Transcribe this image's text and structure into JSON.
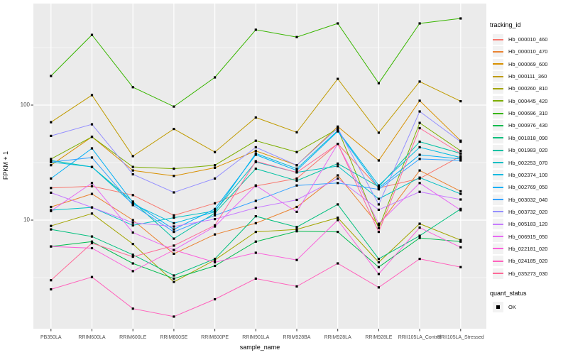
{
  "chart_data": {
    "type": "line",
    "title": "",
    "xlabel": "sample_name",
    "ylabel": "FPKM + 1",
    "y_scale": "log10",
    "ylim": [
      1.1,
      750
    ],
    "y_ticks": [
      {
        "label": "100",
        "value": 100
      },
      {
        "label": "10",
        "value": 10
      }
    ],
    "y_minor_gridlines": [
      3.162,
      31.62,
      316.2
    ],
    "grid": true,
    "panel_bg": "#ebebeb",
    "grid_color": "#ffffff",
    "point_shape": "filled-square",
    "point_color": "#000000",
    "legend_position": "right",
    "categories": [
      "PB350LA",
      "RRIM600LA",
      "RRIM600LE",
      "RRIM600SE",
      "RRIM600PE",
      "RRIM901LA",
      "RRIM928BA",
      "RRIM928LA",
      "RRIM928LE",
      "RRII105LA_Control",
      "RRII105LA_Stressed"
    ],
    "series": [
      {
        "name": "Hb_000010_460",
        "color": "#F8766D",
        "values": [
          19,
          19.7,
          16.5,
          11,
          14,
          19.8,
          23,
          46,
          19,
          23,
          36
        ]
      },
      {
        "name": "Hb_000010_470",
        "color": "#EA8331",
        "values": [
          13,
          16.9,
          10,
          5.1,
          7.5,
          9.4,
          13,
          24.5,
          9.0,
          27,
          17.8
        ]
      },
      {
        "name": "Hb_000069_600",
        "color": "#D89000",
        "values": [
          30,
          53,
          27,
          24.2,
          28.5,
          40,
          30,
          65,
          33,
          109,
          49
        ]
      },
      {
        "name": "Hb_000111_360",
        "color": "#C09B00",
        "values": [
          71,
          122,
          36,
          62,
          39,
          78,
          58,
          169,
          57.5,
          160,
          108
        ]
      },
      {
        "name": "Hb_000260_810",
        "color": "#A3A500",
        "values": [
          8.9,
          11.4,
          6.2,
          2.9,
          4.5,
          7.9,
          8.3,
          10.5,
          4.3,
          9.3,
          6.7
        ]
      },
      {
        "name": "Hb_000445_420",
        "color": "#7CAE00",
        "values": [
          34,
          53,
          29,
          28,
          30,
          49,
          39,
          62,
          8.5,
          70,
          40
        ]
      },
      {
        "name": "Hb_000696_310",
        "color": "#39B600",
        "values": [
          179,
          408,
          143,
          97,
          174,
          452,
          390,
          513,
          155,
          513,
          566
        ]
      },
      {
        "name": "Hb_000976_430",
        "color": "#00BB4E",
        "values": [
          5.9,
          6.5,
          4.2,
          3.1,
          4.0,
          6.5,
          8.0,
          7.9,
          3.9,
          7.0,
          6.5
        ]
      },
      {
        "name": "Hb_001818_090",
        "color": "#00BF7D",
        "values": [
          8.3,
          7.2,
          5.0,
          3.3,
          4.6,
          10.8,
          8.7,
          13.7,
          4.6,
          7.3,
          12.5
        ]
      },
      {
        "name": "Hb_001983_020",
        "color": "#00C1A3",
        "values": [
          33,
          29,
          14.5,
          6.9,
          11.5,
          28,
          22,
          31,
          19.5,
          48,
          38
        ]
      },
      {
        "name": "Hb_002253_070",
        "color": "#00BFC4",
        "values": [
          12.2,
          12.9,
          9.0,
          10.5,
          12,
          32,
          26,
          29.5,
          15.3,
          23.4,
          16.9
        ]
      },
      {
        "name": "Hb_002374_100",
        "color": "#00BAE0",
        "values": [
          32,
          29,
          13.8,
          9.4,
          11.8,
          38,
          28,
          60,
          20,
          43,
          35
        ]
      },
      {
        "name": "Hb_002769_050",
        "color": "#00B0F6",
        "values": [
          23,
          42,
          14.2,
          8.3,
          12.5,
          37,
          27,
          59,
          19,
          37,
          34
        ]
      },
      {
        "name": "Hb_003032_040",
        "color": "#35A2FF",
        "values": [
          32,
          35,
          13.5,
          7.9,
          11,
          14.7,
          20,
          21,
          18.5,
          34,
          33
        ]
      },
      {
        "name": "Hb_003732_020",
        "color": "#9590FF",
        "values": [
          54,
          68,
          25,
          17.4,
          23,
          43,
          30,
          63,
          13.7,
          88,
          48
        ]
      },
      {
        "name": "Hb_005183_120",
        "color": "#C77CFF",
        "values": [
          17.3,
          12.9,
          9.5,
          8.8,
          10.2,
          12.8,
          15,
          23,
          12.3,
          17.6,
          15.1
        ]
      },
      {
        "name": "Hb_006915_050",
        "color": "#E76BF3",
        "values": [
          12,
          21,
          7.8,
          5.5,
          8.8,
          20,
          11.8,
          46,
          9.3,
          21,
          12.2
        ]
      },
      {
        "name": "Hb_022181_020",
        "color": "#FA62DB",
        "values": [
          5.9,
          5.7,
          3.6,
          5.5,
          4.3,
          5.2,
          4.5,
          10,
          3.4,
          8.6,
          5.8
        ]
      },
      {
        "name": "Hb_024185_020",
        "color": "#FF62BC",
        "values": [
          2.5,
          3.2,
          1.7,
          1.45,
          2.05,
          3.1,
          2.65,
          4.2,
          2.6,
          4.6,
          3.9
        ]
      },
      {
        "name": "Hb_035273_030",
        "color": "#FF6A98",
        "values": [
          3.0,
          6.3,
          4.8,
          6.0,
          9.0,
          32.5,
          26,
          46,
          7.9,
          63,
          38
        ]
      }
    ]
  },
  "legend": {
    "tracking_title": "tracking_id",
    "quant_title": "quant_status",
    "quant_items": [
      {
        "label": "OK",
        "shape": "filled-square",
        "color": "#000000"
      }
    ],
    "key_bg": "#f2f2f2"
  }
}
